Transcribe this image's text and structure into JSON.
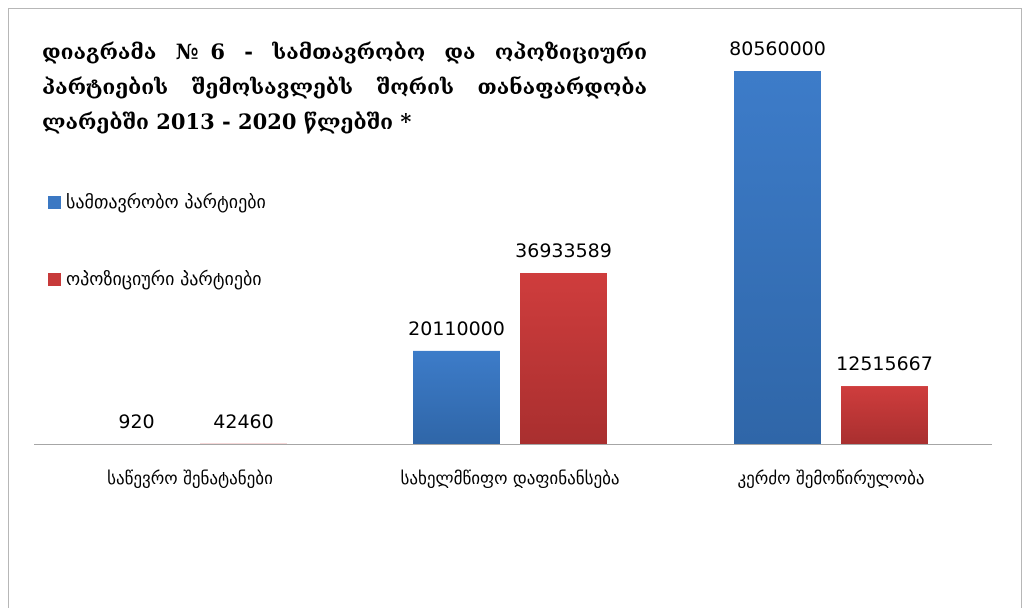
{
  "title_lines": [
    "დიაგრამა №6 - სამთავრობო და ოპოზიციური",
    "პარტიების შემოსავლებს შორის თანაფარდობა",
    "ლარებში 2013 - 2020 წლებში *"
  ],
  "colors": {
    "series_gov": "#3b78c3",
    "series_opp": "#c73a3a",
    "axis": "#a6a6a6"
  },
  "chart_data": {
    "type": "bar",
    "title": "დიაგრამა №6 - სამთავრობო და ოპოზიციური პარტიების შემოსავლებს შორის თანაფარდობა ლარებში 2013 - 2020 წლებში *",
    "categories": [
      "საწევრო შენატანები",
      "სახელმწიფო დაფინანსება",
      "კერძო შემოწირულობა"
    ],
    "series": [
      {
        "name": "სამთავრობო პარტიები",
        "values": [
          920,
          20110000,
          80560000
        ]
      },
      {
        "name": "ოპოზიციური პარტიები",
        "values": [
          42460,
          36933589,
          12515667
        ]
      }
    ],
    "ylim": [
      0,
      80560000
    ],
    "grid": false,
    "legend": "left",
    "data_labels": true
  }
}
